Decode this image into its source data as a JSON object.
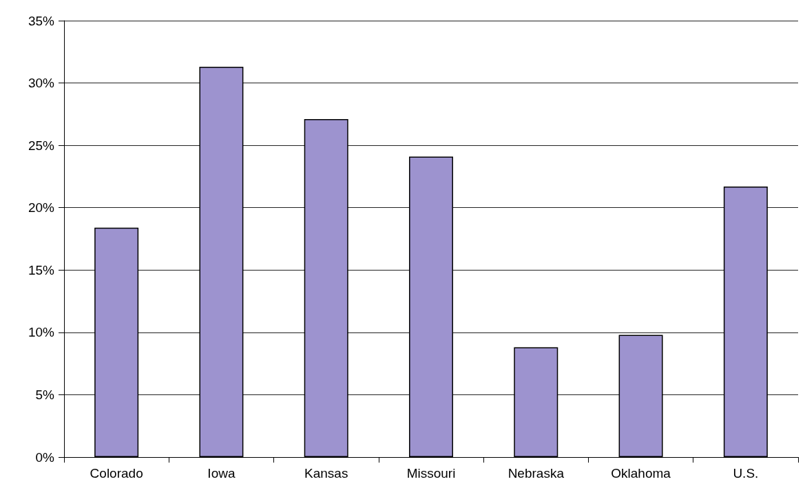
{
  "chart_data": {
    "type": "bar",
    "categories": [
      "Colorado",
      "Iowa",
      "Kansas",
      "Missouri",
      "Nebraska",
      "Oklahoma",
      "U.S."
    ],
    "values": [
      18.4,
      31.3,
      27.1,
      24.1,
      8.8,
      9.8,
      21.7
    ],
    "color": "#9d93cf",
    "ylim": [
      0,
      35
    ],
    "yticks": [
      {
        "value": 0,
        "label": "0%"
      },
      {
        "value": 5,
        "label": "5%"
      },
      {
        "value": 10,
        "label": "10%"
      },
      {
        "value": 15,
        "label": "15%"
      },
      {
        "value": 20,
        "label": "20%"
      },
      {
        "value": 25,
        "label": "25%"
      },
      {
        "value": 30,
        "label": "30%"
      },
      {
        "value": 35,
        "label": "35%"
      }
    ],
    "grid": "y"
  }
}
